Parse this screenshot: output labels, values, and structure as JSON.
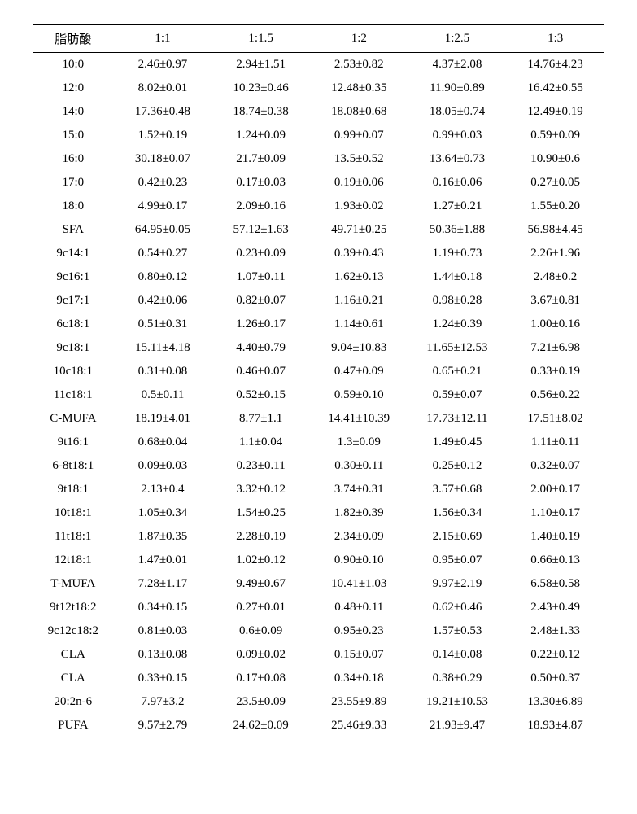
{
  "table": {
    "columns": [
      "脂肪酸",
      "1:1",
      "1:1.5",
      "1:2",
      "1:2.5",
      "1:3"
    ],
    "rows": [
      [
        "10:0",
        "2.46±0.97",
        "2.94±1.51",
        "2.53±0.82",
        "4.37±2.08",
        "14.76±4.23"
      ],
      [
        "12:0",
        "8.02±0.01",
        "10.23±0.46",
        "12.48±0.35",
        "11.90±0.89",
        "16.42±0.55"
      ],
      [
        "14:0",
        "17.36±0.48",
        "18.74±0.38",
        "18.08±0.68",
        "18.05±0.74",
        "12.49±0.19"
      ],
      [
        "15:0",
        "1.52±0.19",
        "1.24±0.09",
        "0.99±0.07",
        "0.99±0.03",
        "0.59±0.09"
      ],
      [
        "16:0",
        "30.18±0.07",
        "21.7±0.09",
        "13.5±0.52",
        "13.64±0.73",
        "10.90±0.6"
      ],
      [
        "17:0",
        "0.42±0.23",
        "0.17±0.03",
        "0.19±0.06",
        "0.16±0.06",
        "0.27±0.05"
      ],
      [
        "18:0",
        "4.99±0.17",
        "2.09±0.16",
        "1.93±0.02",
        "1.27±0.21",
        "1.55±0.20"
      ],
      [
        "SFA",
        "64.95±0.05",
        "57.12±1.63",
        "49.71±0.25",
        "50.36±1.88",
        "56.98±4.45"
      ],
      [
        "9c14:1",
        "0.54±0.27",
        "0.23±0.09",
        "0.39±0.43",
        "1.19±0.73",
        "2.26±1.96"
      ],
      [
        "9c16:1",
        "0.80±0.12",
        "1.07±0.11",
        "1.62±0.13",
        "1.44±0.18",
        "2.48±0.2"
      ],
      [
        "9c17:1",
        "0.42±0.06",
        "0.82±0.07",
        "1.16±0.21",
        "0.98±0.28",
        "3.67±0.81"
      ],
      [
        "6c18:1",
        "0.51±0.31",
        "1.26±0.17",
        "1.14±0.61",
        "1.24±0.39",
        "1.00±0.16"
      ],
      [
        "9c18:1",
        "15.11±4.18",
        "4.40±0.79",
        "9.04±10.83",
        "11.65±12.53",
        "7.21±6.98"
      ],
      [
        "10c18:1",
        "0.31±0.08",
        "0.46±0.07",
        "0.47±0.09",
        "0.65±0.21",
        "0.33±0.19"
      ],
      [
        "11c18:1",
        "0.5±0.11",
        "0.52±0.15",
        "0.59±0.10",
        "0.59±0.07",
        "0.56±0.22"
      ],
      [
        "C-MUFA",
        "18.19±4.01",
        "8.77±1.1",
        "14.41±10.39",
        "17.73±12.11",
        "17.51±8.02"
      ],
      [
        "9t16:1",
        "0.68±0.04",
        "1.1±0.04",
        "1.3±0.09",
        "1.49±0.45",
        "1.11±0.11"
      ],
      [
        "6-8t18:1",
        "0.09±0.03",
        "0.23±0.11",
        "0.30±0.11",
        "0.25±0.12",
        "0.32±0.07"
      ],
      [
        "9t18:1",
        "2.13±0.4",
        "3.32±0.12",
        "3.74±0.31",
        "3.57±0.68",
        "2.00±0.17"
      ],
      [
        "10t18:1",
        "1.05±0.34",
        "1.54±0.25",
        "1.82±0.39",
        "1.56±0.34",
        "1.10±0.17"
      ],
      [
        "11t18:1",
        "1.87±0.35",
        "2.28±0.19",
        "2.34±0.09",
        "2.15±0.69",
        "1.40±0.19"
      ],
      [
        "12t18:1",
        "1.47±0.01",
        "1.02±0.12",
        "0.90±0.10",
        "0.95±0.07",
        "0.66±0.13"
      ],
      [
        "T-MUFA",
        "7.28±1.17",
        "9.49±0.67",
        "10.41±1.03",
        "9.97±2.19",
        "6.58±0.58"
      ],
      [
        "9t12t18:2",
        "0.34±0.15",
        "0.27±0.01",
        "0.48±0.11",
        "0.62±0.46",
        "2.43±0.49"
      ],
      [
        "9c12c18:2",
        "0.81±0.03",
        "0.6±0.09",
        "0.95±0.23",
        "1.57±0.53",
        "2.48±1.33"
      ],
      [
        "CLA",
        "0.13±0.08",
        "0.09±0.02",
        "0.15±0.07",
        "0.14±0.08",
        "0.22±0.12"
      ],
      [
        "CLA",
        "0.33±0.15",
        "0.17±0.08",
        "0.34±0.18",
        "0.38±0.29",
        "0.50±0.37"
      ],
      [
        "20:2n-6",
        "7.97±3.2",
        "23.5±0.09",
        "23.55±9.89",
        "19.21±10.53",
        "13.30±6.89"
      ],
      [
        "PUFA",
        "9.57±2.79",
        "24.62±0.09",
        "25.46±9.33",
        "21.93±9.47",
        "18.93±4.87"
      ]
    ],
    "header_fontsize": 15,
    "cell_fontsize": 15,
    "border_color": "#000000",
    "background_color": "#ffffff",
    "text_color": "#000000"
  }
}
